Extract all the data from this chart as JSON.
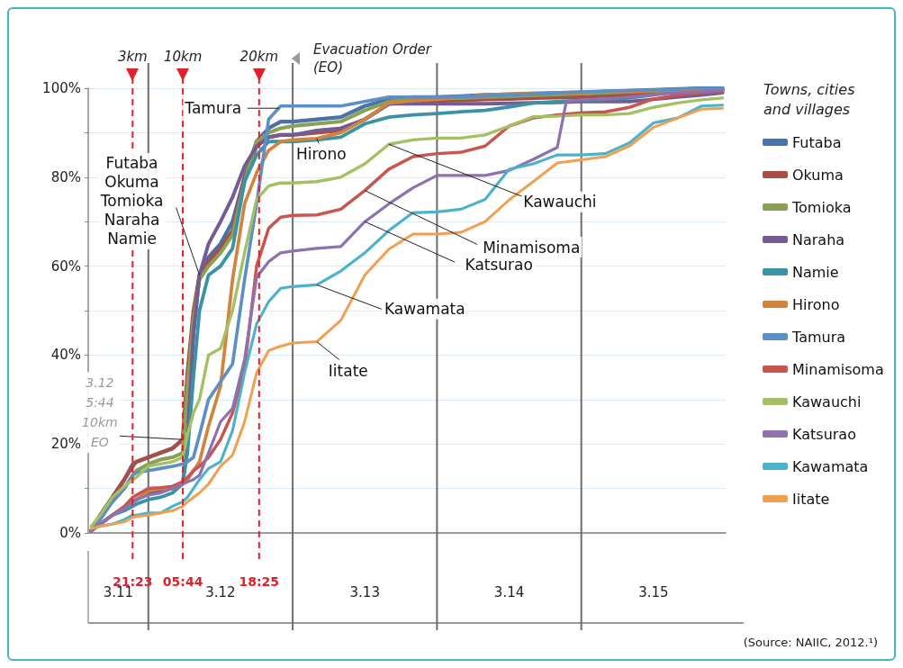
{
  "chart_data": {
    "type": "line",
    "legend_title": "Towns, cities and villages",
    "x": [
      "--03-11T14:30",
      "--03-11T16:00",
      "--03-11T18:00",
      "--03-11T20:00",
      "--03-11T21:24",
      "--03-11T22:00",
      "--03-12T00:00",
      "--03-12T02:00",
      "--03-12T04:00",
      "--03-12T05:42",
      "--03-12T06:30",
      "--03-12T07:30",
      "--03-12T08:30",
      "--03-12T10:00",
      "--03-12T12:00",
      "--03-12T14:00",
      "--03-12T16:00",
      "--03-12T18:00",
      "--03-12T20:00",
      "--03-12T22:00",
      "--03-13T00:00",
      "--03-13T04:00",
      "--03-13T08:00",
      "--03-13T12:00",
      "--03-13T16:00",
      "--03-13T20:00",
      "--03-14T00:00",
      "--03-14T04:00",
      "--03-14T08:00",
      "--03-14T12:00",
      "--03-14T16:00",
      "--03-14T20:00",
      "--03-15T00:00",
      "--03-15T04:00",
      "--03-15T08:00",
      "--03-15T12:00",
      "--03-15T16:00",
      "--03-15T20:00",
      "--03-15T23:30"
    ],
    "xlim": [
      "--03-11T14:00",
      "--03-16T00:00"
    ],
    "xticks": [
      {
        "value": "--03-11T19:00",
        "label": "3.11"
      },
      {
        "value": "--03-12T12:00",
        "label": "3.12"
      },
      {
        "value": "--03-13T12:00",
        "label": "3.13"
      },
      {
        "value": "--03-14T12:00",
        "label": "3.14"
      },
      {
        "value": "--03-15T12:00",
        "label": "3.15"
      }
    ],
    "ylim": [
      0,
      100
    ],
    "yticks": [
      {
        "value": 0,
        "label": "0%"
      },
      {
        "value": 10,
        "label": null
      },
      {
        "value": 20,
        "label": "20%"
      },
      {
        "value": 30,
        "label": null
      },
      {
        "value": 40,
        "label": "40%"
      },
      {
        "value": 50,
        "label": null
      },
      {
        "value": 60,
        "label": "60%"
      },
      {
        "value": 70,
        "label": null
      },
      {
        "value": 80,
        "label": "80%"
      },
      {
        "value": 90,
        "label": null
      },
      {
        "value": 100,
        "label": "100%"
      }
    ],
    "grid": "y",
    "legend": "right",
    "marker": "none",
    "series": [
      {
        "name": "Futaba",
        "color": "#4a72a6",
        "values": [
          0.5,
          4,
          8,
          12,
          15.5,
          16,
          17,
          18,
          19,
          21,
          28,
          45,
          58,
          62,
          65,
          70,
          80,
          88,
          91,
          92.5,
          92.5,
          93,
          93.5,
          96,
          97.5,
          98,
          98,
          98.2,
          98.5,
          98.6,
          98.7,
          98.8,
          99,
          99.2,
          99.4,
          99.6,
          99.8,
          100,
          100
        ]
      },
      {
        "name": "Okuma",
        "color": "#a84d48",
        "values": [
          0.5,
          4,
          8,
          12,
          15,
          16,
          17,
          18,
          19,
          21,
          36,
          50,
          58,
          61,
          64,
          68,
          80,
          87,
          89,
          89.5,
          89.5,
          90,
          90.5,
          93,
          96.5,
          97,
          97.2,
          97.3,
          97.5,
          97.6,
          97.8,
          97.9,
          98,
          98.3,
          98.6,
          99,
          99.2,
          99.4,
          99.5
        ]
      },
      {
        "name": "Tomioka",
        "color": "#8aa052",
        "values": [
          0.5,
          3.5,
          7,
          10,
          13,
          14,
          15.5,
          16.5,
          17,
          18,
          33,
          48,
          57,
          60,
          63,
          67,
          79,
          88,
          90,
          91,
          91.5,
          92,
          92.5,
          95,
          97,
          97.5,
          97.7,
          97.8,
          98,
          98.2,
          98.4,
          98.6,
          98.8,
          99,
          99.2,
          99.4,
          99.6,
          99.8,
          99.8
        ]
      },
      {
        "name": "Naraha",
        "color": "#735b93",
        "values": [
          0.5,
          2,
          4,
          5.5,
          7,
          7.5,
          9,
          9.5,
          10,
          11,
          20,
          45,
          58,
          65,
          70,
          75.5,
          82.5,
          87,
          89,
          89.5,
          89.5,
          90.5,
          91,
          93,
          96.5,
          96.5,
          96.5,
          96.5,
          96.5,
          96.6,
          96.7,
          96.8,
          97,
          97,
          97,
          97.5,
          98,
          98.5,
          99
        ]
      },
      {
        "name": "Namie",
        "color": "#3a93a4",
        "values": [
          0.5,
          2,
          4,
          5,
          6,
          6.5,
          7.5,
          8,
          9,
          11,
          18,
          35,
          50,
          58,
          60,
          64,
          79,
          85,
          88,
          88,
          88,
          88.4,
          89,
          92,
          93.5,
          94,
          94.3,
          94.7,
          95,
          95.8,
          96.7,
          97,
          97.3,
          97.5,
          97.8,
          98.5,
          99.5,
          99.8,
          99.9
        ]
      },
      {
        "name": "Hirono",
        "color": "#d1843e",
        "values": [
          0.5,
          2,
          4,
          5.5,
          7,
          7.5,
          9.5,
          10,
          10,
          11,
          12,
          14,
          16,
          24,
          33,
          57,
          74,
          81,
          86,
          88,
          88.4,
          88.7,
          90,
          93,
          96.7,
          97.2,
          97.5,
          98,
          98.5,
          98.7,
          98.9,
          99,
          99.1,
          99.2,
          99.3,
          99.4,
          99.5,
          99.6,
          99.7
        ]
      },
      {
        "name": "Tamura",
        "color": "#5b8fc6",
        "values": [
          0.5,
          3,
          7,
          10,
          13,
          13.5,
          14,
          14.5,
          15,
          15.5,
          16,
          17,
          22,
          30,
          34,
          38,
          57,
          74,
          93,
          96,
          96,
          96,
          96,
          97,
          98,
          98,
          98,
          98.1,
          98.3,
          98.5,
          98.7,
          99,
          99.2,
          99.4,
          99.5,
          99.6,
          99.8,
          100,
          100
        ]
      },
      {
        "name": "Minamisoma",
        "color": "#c9554f",
        "values": [
          0.5,
          2,
          4,
          6,
          8,
          8.5,
          10,
          10.2,
          10.5,
          11.5,
          12.5,
          14,
          15,
          17,
          21,
          27,
          37,
          60,
          68.5,
          71,
          71.4,
          71.5,
          72.8,
          77,
          81.8,
          84.6,
          85.3,
          85.6,
          87,
          91.5,
          93.3,
          94,
          94.5,
          94.7,
          95.7,
          97.6,
          98.5,
          99,
          99.3
        ]
      },
      {
        "name": "Kawauchi",
        "color": "#a5c064",
        "values": [
          1.5,
          4,
          8,
          10.5,
          12,
          12.5,
          15,
          15.5,
          16,
          17,
          22,
          27,
          30,
          40,
          41.5,
          50,
          63,
          75,
          78,
          78.7,
          78.7,
          79,
          80,
          83,
          87.4,
          88.4,
          88.8,
          88.8,
          89.5,
          91.5,
          93.6,
          93.7,
          94,
          94,
          94.3,
          95.7,
          96.7,
          97.4,
          97.8
        ]
      },
      {
        "name": "Katsurao",
        "color": "#8e72b0",
        "x": [
          "--03-11T14:30",
          "--03-11T16:00",
          "--03-11T18:00",
          "--03-11T20:00",
          "--03-11T21:24",
          "--03-11T22:00",
          "--03-12T00:00",
          "--03-12T02:00",
          "--03-12T04:00",
          "--03-12T05:42",
          "--03-12T06:30",
          "--03-12T07:30",
          "--03-12T08:30",
          "--03-12T10:00",
          "--03-12T12:00",
          "--03-12T14:00",
          "--03-12T16:00",
          "--03-12T18:00",
          "--03-12T20:00",
          "--03-12T22:00",
          "--03-13T00:00",
          "--03-13T04:00",
          "--03-13T08:00",
          "--03-13T12:00",
          "--03-13T16:00",
          "--03-13T20:00",
          "--03-14T00:00",
          "--03-14T04:00",
          "--03-14T08:00",
          "--03-14T12:00",
          "--03-14T16:00",
          "--03-14T20:00",
          "--03-14T21:30",
          "--03-15T00:00",
          "--03-15T04:00",
          "--03-15T08:00",
          "--03-15T12:00",
          "--03-15T16:00",
          "--03-15T20:00",
          "--03-15T23:30"
        ],
        "values": [
          0.5,
          2,
          4,
          5.5,
          7,
          7.5,
          8.5,
          9,
          10,
          11,
          11.5,
          12,
          13,
          18,
          25,
          28,
          39,
          57.5,
          61,
          63,
          63.4,
          64,
          64.4,
          70,
          74,
          77.6,
          80.4,
          80.4,
          80.4,
          81.5,
          84,
          86.7,
          97,
          97.4,
          97.6,
          98,
          98.5,
          99,
          99.2,
          99.5
        ]
      },
      {
        "name": "Kawamata",
        "color": "#4cb2cc",
        "values": [
          1,
          1.5,
          2,
          3,
          4,
          4,
          4.5,
          4.5,
          6,
          7,
          8,
          10,
          12,
          14.5,
          16,
          23,
          36,
          47,
          52,
          55,
          55.4,
          55.8,
          58.9,
          63,
          68,
          72,
          72.2,
          72.8,
          75,
          81.8,
          83,
          85,
          85,
          85.3,
          87.7,
          92.2,
          93.3,
          96,
          96.2
        ]
      },
      {
        "name": "Iitate",
        "color": "#f0a050",
        "values": [
          1,
          1.5,
          2,
          2.5,
          3.5,
          3.7,
          4,
          4.5,
          5,
          6,
          7,
          8,
          9,
          11,
          15,
          17.5,
          25,
          36,
          41,
          42,
          42.7,
          43,
          47.8,
          58,
          63.8,
          67.2,
          67.2,
          67.6,
          70,
          74.9,
          79,
          83.2,
          83.9,
          84.6,
          87,
          91.2,
          93.3,
          95.3,
          95.5
        ]
      }
    ],
    "ref_lines": [
      {
        "axis": "x",
        "value": "--03-11T21:23",
        "label": "3km",
        "color": "#e0202a",
        "line_style": "dashed"
      },
      {
        "axis": "x",
        "value": "--03-12T05:44",
        "label": "10km",
        "color": "#e0202a",
        "line_style": "dashed"
      },
      {
        "axis": "x",
        "value": "--03-12T18:25",
        "label": "20km",
        "color": "#e0202a",
        "line_style": "dashed"
      },
      {
        "axis": "x",
        "value": "--03-12T00:00",
        "label": null,
        "color": "#6d6d6d",
        "line_style": "solid"
      },
      {
        "axis": "x",
        "value": "--03-13T00:00",
        "label": null,
        "color": "#6d6d6d",
        "line_style": "solid"
      },
      {
        "axis": "x",
        "value": "--03-14T00:00",
        "label": null,
        "color": "#6d6d6d",
        "line_style": "solid"
      },
      {
        "axis": "x",
        "value": "--03-15T00:00",
        "label": null,
        "color": "#6d6d6d",
        "line_style": "solid"
      }
    ],
    "annotations": [
      "Evacuation Order (EO)",
      {
        "text": "Tamura",
        "x": "--03-12T21:42",
        "y": 95.5
      },
      {
        "text": "Hirono",
        "x": "--03-13T04:00",
        "y": 88.7
      },
      {
        "text": "Kawauchi",
        "x": "--03-13T16:00",
        "y": 87.4
      },
      {
        "text": "Minamisoma",
        "x": "--03-13T12:00",
        "y": 77
      },
      {
        "text": "Katsurao",
        "x": "--03-13T12:00",
        "y": 70
      },
      {
        "text": "Kawamata",
        "x": "--03-13T04:00",
        "y": 55.8
      },
      {
        "text": "Iitate",
        "x": "--03-13T04:00",
        "y": 43
      },
      {
        "text": "Futaba\nOkuma\nTomioka\nNaraha\nNamie",
        "x": "--03-12T08:30",
        "y": 58
      },
      {
        "text": "3.12\n5:44\n10km\nEO",
        "x": "--03-12T05:42",
        "y": 21
      },
      "21:23",
      "05:44",
      "18:25",
      "(Source: NAIIC, 2012.¹)"
    ]
  }
}
